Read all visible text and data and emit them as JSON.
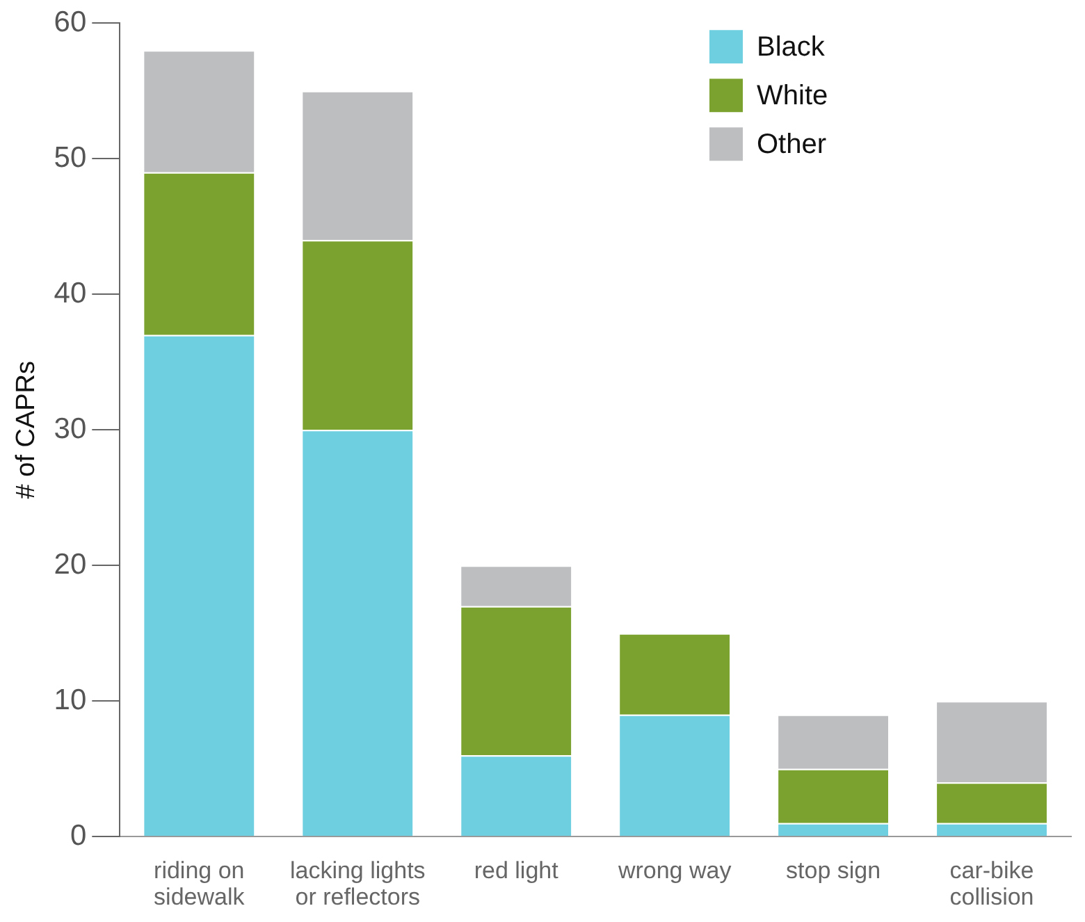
{
  "chart_data": {
    "type": "bar",
    "ylabel": "# of CAPRs",
    "stacked": true,
    "categories": [
      "riding on sidewalk",
      "lacking lights or reflectors",
      "red light",
      "wrong way",
      "stop sign",
      "car-bike collision"
    ],
    "series": [
      {
        "name": "Black",
        "color": "#6ecfe0",
        "values": [
          37,
          30,
          6,
          9,
          1,
          1
        ]
      },
      {
        "name": "White",
        "color": "#7ba22f",
        "values": [
          12,
          14,
          11,
          6,
          4,
          3
        ]
      },
      {
        "name": "Other",
        "color": "#bdbec0",
        "values": [
          9,
          11,
          3,
          0,
          4,
          6
        ]
      }
    ],
    "ylim": [
      0,
      60
    ],
    "yticks": [
      0,
      10,
      20,
      30,
      40,
      50,
      60
    ],
    "grid": false,
    "legend": "top right"
  }
}
